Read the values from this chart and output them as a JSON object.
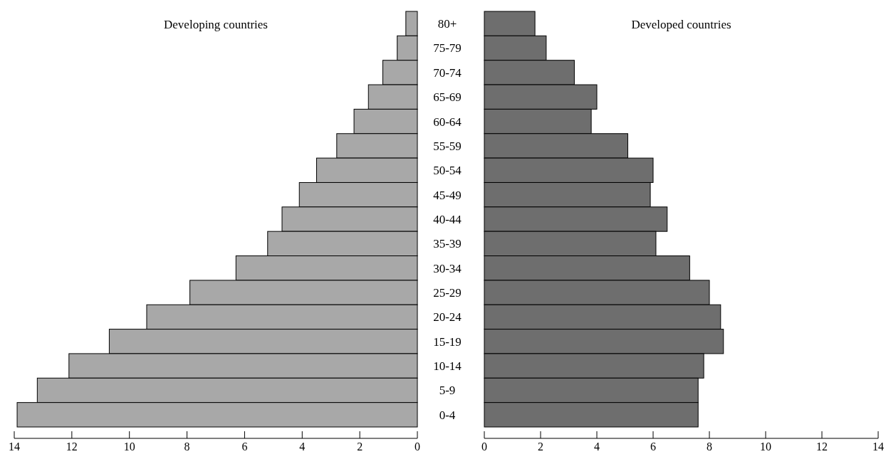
{
  "chart_data": [
    {
      "type": "bar",
      "orientation": "horizontal",
      "title": "Developing countries",
      "categories": [
        "80+",
        "75-79",
        "70-74",
        "65-69",
        "60-64",
        "55-59",
        "50-54",
        "45-49",
        "40-44",
        "35-39",
        "30-34",
        "25-29",
        "20-24",
        "15-19",
        "10-14",
        "5-9",
        "0-4"
      ],
      "values": [
        0.4,
        0.7,
        1.2,
        1.7,
        2.2,
        2.8,
        3.5,
        4.1,
        4.7,
        5.2,
        6.3,
        7.9,
        9.4,
        10.7,
        12.1,
        13.2,
        13.9
      ],
      "color": "#a8a8a8",
      "xlim": [
        14,
        0
      ],
      "xticks": [
        14,
        12,
        10,
        8,
        6,
        4,
        2,
        0
      ]
    },
    {
      "type": "bar",
      "orientation": "horizontal",
      "title": "Developed countries",
      "categories": [
        "80+",
        "75-79",
        "70-74",
        "65-69",
        "60-64",
        "55-59",
        "50-54",
        "45-49",
        "40-44",
        "35-39",
        "30-34",
        "25-29",
        "20-24",
        "15-19",
        "10-14",
        "5-9",
        "0-4"
      ],
      "values": [
        1.8,
        2.2,
        3.2,
        4.0,
        3.8,
        5.1,
        6.0,
        5.9,
        6.5,
        6.1,
        7.3,
        8.0,
        8.4,
        8.5,
        7.8,
        7.6,
        7.6
      ],
      "color": "#6e6e6e",
      "xlim": [
        0,
        14
      ],
      "xticks": [
        0,
        2,
        4,
        6,
        8,
        10,
        12,
        14
      ],
      "tick_labels": "x"
    }
  ]
}
